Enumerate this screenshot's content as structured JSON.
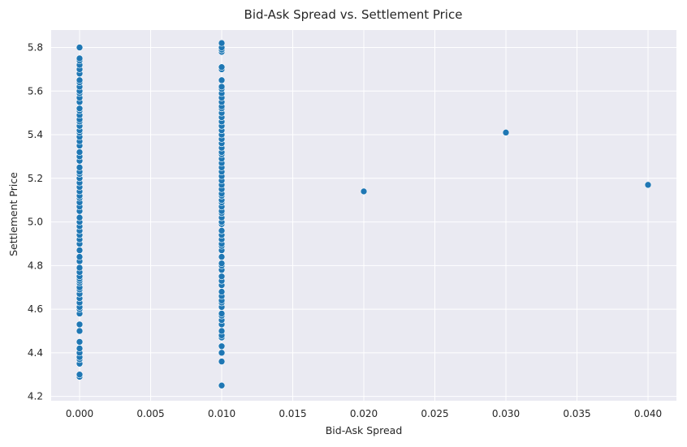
{
  "chart_data": {
    "type": "scatter",
    "title": "Bid-Ask Spread vs. Settlement Price",
    "xlabel": "Bid-Ask Spread",
    "ylabel": "Settlement Price",
    "xlim": [
      -0.002,
      0.042
    ],
    "ylim": [
      4.18,
      5.88
    ],
    "xticks": [
      "0.000",
      "0.005",
      "0.010",
      "0.015",
      "0.020",
      "0.025",
      "0.030",
      "0.035",
      "0.040"
    ],
    "yticks": [
      "4.2",
      "4.4",
      "4.6",
      "4.8",
      "5.0",
      "5.2",
      "5.4",
      "5.6",
      "5.8"
    ],
    "grid": true,
    "legend": "none",
    "colors": {
      "point": "#1f77b4",
      "plot_bg": "#eaeaf2",
      "grid": "#ffffff"
    },
    "points": [
      [
        0.0,
        4.29
      ],
      [
        0.0,
        4.3
      ],
      [
        0.0,
        4.35
      ],
      [
        0.0,
        4.37
      ],
      [
        0.0,
        4.38
      ],
      [
        0.0,
        4.4
      ],
      [
        0.0,
        4.42
      ],
      [
        0.0,
        4.45
      ],
      [
        0.0,
        4.5
      ],
      [
        0.0,
        4.53
      ],
      [
        0.0,
        4.58
      ],
      [
        0.0,
        4.6
      ],
      [
        0.0,
        4.61
      ],
      [
        0.0,
        4.63
      ],
      [
        0.0,
        4.65
      ],
      [
        0.0,
        4.67
      ],
      [
        0.0,
        4.69
      ],
      [
        0.0,
        4.7
      ],
      [
        0.0,
        4.72
      ],
      [
        0.0,
        4.73
      ],
      [
        0.0,
        4.74
      ],
      [
        0.0,
        4.75
      ],
      [
        0.0,
        4.77
      ],
      [
        0.0,
        4.79
      ],
      [
        0.0,
        4.82
      ],
      [
        0.0,
        4.84
      ],
      [
        0.0,
        4.87
      ],
      [
        0.0,
        4.9
      ],
      [
        0.0,
        4.92
      ],
      [
        0.0,
        4.94
      ],
      [
        0.0,
        4.96
      ],
      [
        0.0,
        4.98
      ],
      [
        0.0,
        5.0
      ],
      [
        0.0,
        5.02
      ],
      [
        0.0,
        5.05
      ],
      [
        0.0,
        5.07
      ],
      [
        0.0,
        5.09
      ],
      [
        0.0,
        5.11
      ],
      [
        0.0,
        5.12
      ],
      [
        0.0,
        5.14
      ],
      [
        0.0,
        5.16
      ],
      [
        0.0,
        5.18
      ],
      [
        0.0,
        5.2
      ],
      [
        0.0,
        5.22
      ],
      [
        0.0,
        5.23
      ],
      [
        0.0,
        5.25
      ],
      [
        0.0,
        5.28
      ],
      [
        0.0,
        5.3
      ],
      [
        0.0,
        5.32
      ],
      [
        0.0,
        5.35
      ],
      [
        0.0,
        5.37
      ],
      [
        0.0,
        5.39
      ],
      [
        0.0,
        5.41
      ],
      [
        0.0,
        5.42
      ],
      [
        0.0,
        5.44
      ],
      [
        0.0,
        5.46
      ],
      [
        0.0,
        5.47
      ],
      [
        0.0,
        5.49
      ],
      [
        0.0,
        5.51
      ],
      [
        0.0,
        5.52
      ],
      [
        0.0,
        5.55
      ],
      [
        0.0,
        5.57
      ],
      [
        0.0,
        5.59
      ],
      [
        0.0,
        5.6
      ],
      [
        0.0,
        5.62
      ],
      [
        0.0,
        5.64
      ],
      [
        0.0,
        5.65
      ],
      [
        0.0,
        5.68
      ],
      [
        0.0,
        5.7
      ],
      [
        0.0,
        5.72
      ],
      [
        0.0,
        5.74
      ],
      [
        0.0,
        5.75
      ],
      [
        0.0,
        5.8
      ],
      [
        0.01,
        4.25
      ],
      [
        0.01,
        4.36
      ],
      [
        0.01,
        4.4
      ],
      [
        0.01,
        4.43
      ],
      [
        0.01,
        4.47
      ],
      [
        0.01,
        4.48
      ],
      [
        0.01,
        4.5
      ],
      [
        0.01,
        4.53
      ],
      [
        0.01,
        4.55
      ],
      [
        0.01,
        4.57
      ],
      [
        0.01,
        4.58
      ],
      [
        0.01,
        4.61
      ],
      [
        0.01,
        4.63
      ],
      [
        0.01,
        4.64
      ],
      [
        0.01,
        4.66
      ],
      [
        0.01,
        4.68
      ],
      [
        0.01,
        4.71
      ],
      [
        0.01,
        4.73
      ],
      [
        0.01,
        4.75
      ],
      [
        0.01,
        4.78
      ],
      [
        0.01,
        4.8
      ],
      [
        0.01,
        4.81
      ],
      [
        0.01,
        4.84
      ],
      [
        0.01,
        4.87
      ],
      [
        0.01,
        4.89
      ],
      [
        0.01,
        4.9
      ],
      [
        0.01,
        4.92
      ],
      [
        0.01,
        4.94
      ],
      [
        0.01,
        4.96
      ],
      [
        0.01,
        4.99
      ],
      [
        0.01,
        5.0
      ],
      [
        0.01,
        5.02
      ],
      [
        0.01,
        5.04
      ],
      [
        0.01,
        5.05
      ],
      [
        0.01,
        5.07
      ],
      [
        0.01,
        5.09
      ],
      [
        0.01,
        5.1
      ],
      [
        0.01,
        5.12
      ],
      [
        0.01,
        5.13
      ],
      [
        0.01,
        5.15
      ],
      [
        0.01,
        5.17
      ],
      [
        0.01,
        5.19
      ],
      [
        0.01,
        5.21
      ],
      [
        0.01,
        5.23
      ],
      [
        0.01,
        5.25
      ],
      [
        0.01,
        5.27
      ],
      [
        0.01,
        5.29
      ],
      [
        0.01,
        5.31
      ],
      [
        0.01,
        5.32
      ],
      [
        0.01,
        5.34
      ],
      [
        0.01,
        5.36
      ],
      [
        0.01,
        5.38
      ],
      [
        0.01,
        5.4
      ],
      [
        0.01,
        5.42
      ],
      [
        0.01,
        5.44
      ],
      [
        0.01,
        5.46
      ],
      [
        0.01,
        5.48
      ],
      [
        0.01,
        5.5
      ],
      [
        0.01,
        5.52
      ],
      [
        0.01,
        5.53
      ],
      [
        0.01,
        5.55
      ],
      [
        0.01,
        5.57
      ],
      [
        0.01,
        5.59
      ],
      [
        0.01,
        5.61
      ],
      [
        0.01,
        5.62
      ],
      [
        0.01,
        5.65
      ],
      [
        0.01,
        5.7
      ],
      [
        0.01,
        5.71
      ],
      [
        0.01,
        5.78
      ],
      [
        0.01,
        5.79
      ],
      [
        0.01,
        5.8
      ],
      [
        0.01,
        5.82
      ],
      [
        0.02,
        5.14
      ],
      [
        0.03,
        5.41
      ],
      [
        0.04,
        5.17
      ]
    ]
  }
}
